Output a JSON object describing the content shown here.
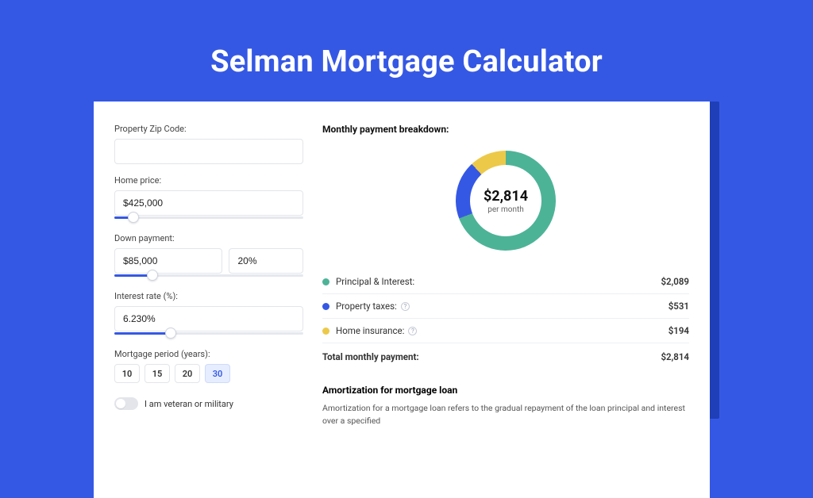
{
  "page": {
    "title": "Selman Mortgage Calculator",
    "background_color": "#3558e4",
    "title_color": "#ffffff",
    "title_fontsize": 38
  },
  "form": {
    "zip": {
      "label": "Property Zip Code:",
      "value": ""
    },
    "home_price": {
      "label": "Home price:",
      "value": "$425,000",
      "slider_pct": 10
    },
    "down_payment": {
      "label": "Down payment:",
      "value": "$85,000",
      "pct_value": "20%",
      "slider_pct": 20
    },
    "interest_rate": {
      "label": "Interest rate (%):",
      "value": "6.230%",
      "slider_pct": 30
    },
    "period": {
      "label": "Mortgage period (years):",
      "options": [
        "10",
        "15",
        "20",
        "30"
      ],
      "selected": "30"
    },
    "veteran": {
      "label": "I am veteran or military",
      "value": false
    }
  },
  "breakdown": {
    "title": "Monthly payment breakdown:",
    "center_value": "$2,814",
    "center_sub": "per month",
    "donut": {
      "segments": [
        {
          "key": "principal_interest",
          "pct": 74.2,
          "color": "#4db397"
        },
        {
          "key": "property_taxes",
          "pct": 18.9,
          "color": "#3558e4"
        },
        {
          "key": "home_insurance",
          "pct": 6.9,
          "color": "#edc94a"
        }
      ],
      "start_angle_deg": -18
    },
    "items": [
      {
        "label": "Principal & Interest:",
        "value": "$2,089",
        "color": "#4db397",
        "help": false
      },
      {
        "label": "Property taxes:",
        "value": "$531",
        "color": "#3558e4",
        "help": true
      },
      {
        "label": "Home insurance:",
        "value": "$194",
        "color": "#edc94a",
        "help": true
      }
    ],
    "total": {
      "label": "Total monthly payment:",
      "value": "$2,814"
    }
  },
  "amortization": {
    "title": "Amortization for mortgage loan",
    "body": "Amortization for a mortgage loan refers to the gradual repayment of the loan principal and interest over a specified"
  }
}
